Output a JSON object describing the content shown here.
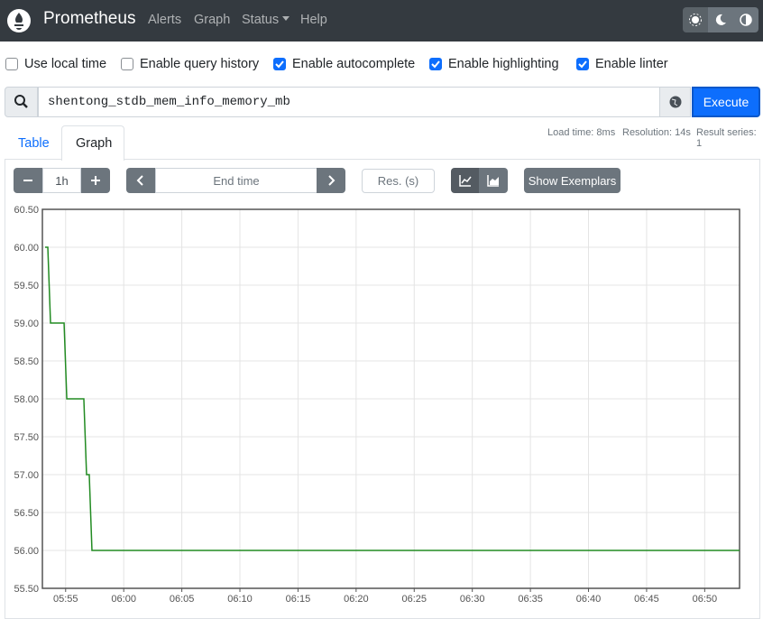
{
  "navbar": {
    "brand": "Prometheus",
    "links": [
      "Alerts",
      "Graph",
      "Status",
      "Help"
    ]
  },
  "options": [
    {
      "label": "Use local time",
      "checked": false
    },
    {
      "label": "Enable query history",
      "checked": false
    },
    {
      "label": "Enable autocomplete",
      "checked": true
    },
    {
      "label": "Enable highlighting",
      "checked": true
    },
    {
      "label": "Enable linter",
      "checked": true
    }
  ],
  "query": "shentong_stdb_mem_info_memory_mb",
  "execute": "Execute",
  "stats": [
    "Load time: 8ms",
    "Resolution: 14s",
    "Result series: 1"
  ],
  "tabs": [
    "Table",
    "Graph"
  ],
  "controls": {
    "range": "1h",
    "end_time": "End time",
    "resolution": "Res. (s)",
    "exemplars": "Show Exemplars"
  },
  "chart_data": {
    "type": "line",
    "color": "#228b22",
    "grid": true,
    "x": [
      "05:53:14",
      "05:53:28",
      "05:53:42",
      "05:54:52",
      "05:55:06",
      "05:56:34",
      "05:56:48",
      "05:57:02",
      "05:57:16",
      "06:53:00"
    ],
    "values": [
      60,
      60,
      59,
      59,
      58,
      58,
      57,
      57,
      56,
      56
    ],
    "xlim": [
      "05:53:00",
      "06:53:00"
    ],
    "xticks": [
      "05:55",
      "06:00",
      "06:05",
      "06:10",
      "06:15",
      "06:20",
      "06:25",
      "06:30",
      "06:35",
      "06:40",
      "06:45",
      "06:50"
    ],
    "ylim": [
      55.5,
      60.5
    ],
    "yticks": [
      {
        "value": 55.5,
        "label": "55.50"
      },
      {
        "value": 56,
        "label": "56.00"
      },
      {
        "value": 56.5,
        "label": "56.50"
      },
      {
        "value": 57,
        "label": "57.00"
      },
      {
        "value": 57.5,
        "label": "57.50"
      },
      {
        "value": 58,
        "label": "58.00"
      },
      {
        "value": 58.5,
        "label": "58.50"
      },
      {
        "value": 59,
        "label": "59.00"
      },
      {
        "value": 59.5,
        "label": "59.50"
      },
      {
        "value": 60,
        "label": "60.00"
      },
      {
        "value": 60.5,
        "label": "60.50"
      }
    ]
  }
}
